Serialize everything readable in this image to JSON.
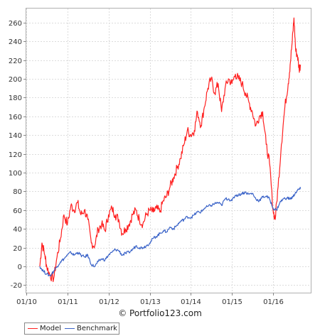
{
  "watermark": "© Portfolio123.com",
  "chart_data": {
    "type": "line",
    "title": "",
    "xlabel": "",
    "ylabel": "",
    "x_ticks": [
      "01/10",
      "01/11",
      "01/12",
      "01/13",
      "01/14",
      "01/15",
      "01/16"
    ],
    "y_ticks": [
      -20,
      0,
      20,
      40,
      60,
      80,
      100,
      120,
      140,
      160,
      180,
      200,
      220,
      240,
      260
    ],
    "xlim": [
      "2010-01-01",
      "2016-12-01"
    ],
    "ylim": [
      -28,
      275
    ],
    "grid": true,
    "legend": "bottom-left",
    "series": [
      {
        "name": "Model",
        "color": "#ff2020",
        "points": [
          [
            "2010-05-01",
            0
          ],
          [
            "2010-05-20",
            25
          ],
          [
            "2010-06-15",
            12
          ],
          [
            "2010-07-01",
            0
          ],
          [
            "2010-08-01",
            -10
          ],
          [
            "2010-09-01",
            -13
          ],
          [
            "2010-10-01",
            10
          ],
          [
            "2010-11-01",
            30
          ],
          [
            "2010-12-01",
            55
          ],
          [
            "2011-01-01",
            45
          ],
          [
            "2011-02-01",
            65
          ],
          [
            "2011-03-01",
            60
          ],
          [
            "2011-04-01",
            68
          ],
          [
            "2011-05-01",
            55
          ],
          [
            "2011-06-01",
            60
          ],
          [
            "2011-07-01",
            50
          ],
          [
            "2011-08-01",
            25
          ],
          [
            "2011-09-01",
            22
          ],
          [
            "2011-10-01",
            40
          ],
          [
            "2011-11-01",
            45
          ],
          [
            "2011-12-01",
            38
          ],
          [
            "2012-01-01",
            55
          ],
          [
            "2012-02-01",
            62
          ],
          [
            "2012-03-01",
            55
          ],
          [
            "2012-04-01",
            50
          ],
          [
            "2012-05-01",
            35
          ],
          [
            "2012-06-01",
            40
          ],
          [
            "2012-07-01",
            45
          ],
          [
            "2012-08-01",
            55
          ],
          [
            "2012-09-01",
            60
          ],
          [
            "2012-10-01",
            50
          ],
          [
            "2012-11-01",
            45
          ],
          [
            "2012-12-01",
            55
          ],
          [
            "2013-01-01",
            60
          ],
          [
            "2013-02-01",
            58
          ],
          [
            "2013-03-01",
            62
          ],
          [
            "2013-04-01",
            58
          ],
          [
            "2013-05-01",
            70
          ],
          [
            "2013-06-01",
            75
          ],
          [
            "2013-07-01",
            85
          ],
          [
            "2013-08-01",
            95
          ],
          [
            "2013-09-01",
            105
          ],
          [
            "2013-10-01",
            115
          ],
          [
            "2013-11-01",
            130
          ],
          [
            "2013-12-01",
            145
          ],
          [
            "2014-01-01",
            140
          ],
          [
            "2014-02-01",
            145
          ],
          [
            "2014-03-01",
            165
          ],
          [
            "2014-04-01",
            150
          ],
          [
            "2014-05-01",
            170
          ],
          [
            "2014-06-01",
            190
          ],
          [
            "2014-07-01",
            200
          ],
          [
            "2014-08-01",
            185
          ],
          [
            "2014-09-01",
            195
          ],
          [
            "2014-10-01",
            165
          ],
          [
            "2014-11-01",
            190
          ],
          [
            "2014-12-01",
            200
          ],
          [
            "2015-01-01",
            195
          ],
          [
            "2015-02-01",
            205
          ],
          [
            "2015-03-01",
            200
          ],
          [
            "2015-04-01",
            195
          ],
          [
            "2015-05-01",
            185
          ],
          [
            "2015-06-01",
            175
          ],
          [
            "2015-07-01",
            165
          ],
          [
            "2015-08-01",
            150
          ],
          [
            "2015-09-01",
            160
          ],
          [
            "2015-10-01",
            165
          ],
          [
            "2015-11-01",
            130
          ],
          [
            "2015-12-01",
            110
          ],
          [
            "2016-01-01",
            60
          ],
          [
            "2016-01-20",
            50
          ],
          [
            "2016-02-15",
            85
          ],
          [
            "2016-03-15",
            130
          ],
          [
            "2016-04-15",
            170
          ],
          [
            "2016-05-15",
            195
          ],
          [
            "2016-06-01",
            215
          ],
          [
            "2016-06-20",
            240
          ],
          [
            "2016-07-05",
            265
          ],
          [
            "2016-07-20",
            230
          ],
          [
            "2016-08-05",
            225
          ],
          [
            "2016-08-20",
            210
          ],
          [
            "2016-09-01",
            215
          ]
        ]
      },
      {
        "name": "Benchmark",
        "color": "#3a63c8",
        "points": [
          [
            "2010-05-01",
            0
          ],
          [
            "2010-06-01",
            -5
          ],
          [
            "2010-07-01",
            -8
          ],
          [
            "2010-08-01",
            -10
          ],
          [
            "2010-09-01",
            -5
          ],
          [
            "2010-10-01",
            0
          ],
          [
            "2010-11-01",
            5
          ],
          [
            "2010-12-01",
            8
          ],
          [
            "2011-01-01",
            12
          ],
          [
            "2011-02-01",
            15
          ],
          [
            "2011-03-01",
            12
          ],
          [
            "2011-04-01",
            15
          ],
          [
            "2011-05-01",
            12
          ],
          [
            "2011-06-01",
            10
          ],
          [
            "2011-07-01",
            12
          ],
          [
            "2011-08-01",
            2
          ],
          [
            "2011-09-01",
            0
          ],
          [
            "2011-10-01",
            5
          ],
          [
            "2011-11-01",
            8
          ],
          [
            "2011-12-01",
            7
          ],
          [
            "2012-01-01",
            12
          ],
          [
            "2012-02-01",
            15
          ],
          [
            "2012-03-01",
            18
          ],
          [
            "2012-04-01",
            17
          ],
          [
            "2012-05-01",
            12
          ],
          [
            "2012-06-01",
            14
          ],
          [
            "2012-07-01",
            15
          ],
          [
            "2012-08-01",
            18
          ],
          [
            "2012-09-01",
            22
          ],
          [
            "2012-10-01",
            20
          ],
          [
            "2012-11-01",
            20
          ],
          [
            "2012-12-01",
            22
          ],
          [
            "2013-01-01",
            25
          ],
          [
            "2013-02-01",
            30
          ],
          [
            "2013-03-01",
            32
          ],
          [
            "2013-04-01",
            35
          ],
          [
            "2013-05-01",
            38
          ],
          [
            "2013-06-01",
            37
          ],
          [
            "2013-07-01",
            42
          ],
          [
            "2013-08-01",
            40
          ],
          [
            "2013-09-01",
            44
          ],
          [
            "2013-10-01",
            48
          ],
          [
            "2013-11-01",
            50
          ],
          [
            "2013-12-01",
            53
          ],
          [
            "2014-01-01",
            52
          ],
          [
            "2014-02-01",
            55
          ],
          [
            "2014-03-01",
            58
          ],
          [
            "2014-04-01",
            58
          ],
          [
            "2014-05-01",
            62
          ],
          [
            "2014-06-01",
            64
          ],
          [
            "2014-07-01",
            65
          ],
          [
            "2014-08-01",
            67
          ],
          [
            "2014-09-01",
            68
          ],
          [
            "2014-10-01",
            65
          ],
          [
            "2014-11-01",
            72
          ],
          [
            "2014-12-01",
            72
          ],
          [
            "2015-01-01",
            70
          ],
          [
            "2015-02-01",
            76
          ],
          [
            "2015-03-01",
            76
          ],
          [
            "2015-04-01",
            78
          ],
          [
            "2015-05-01",
            79
          ],
          [
            "2015-06-01",
            77
          ],
          [
            "2015-07-01",
            78
          ],
          [
            "2015-08-01",
            72
          ],
          [
            "2015-09-01",
            70
          ],
          [
            "2015-10-01",
            74
          ],
          [
            "2015-11-01",
            75
          ],
          [
            "2015-12-01",
            72
          ],
          [
            "2016-01-01",
            62
          ],
          [
            "2016-02-01",
            60
          ],
          [
            "2016-03-01",
            68
          ],
          [
            "2016-04-01",
            72
          ],
          [
            "2016-05-01",
            73
          ],
          [
            "2016-06-01",
            72
          ],
          [
            "2016-06-25",
            74
          ],
          [
            "2016-07-15",
            78
          ],
          [
            "2016-08-15",
            82
          ],
          [
            "2016-09-01",
            83
          ]
        ]
      }
    ]
  }
}
